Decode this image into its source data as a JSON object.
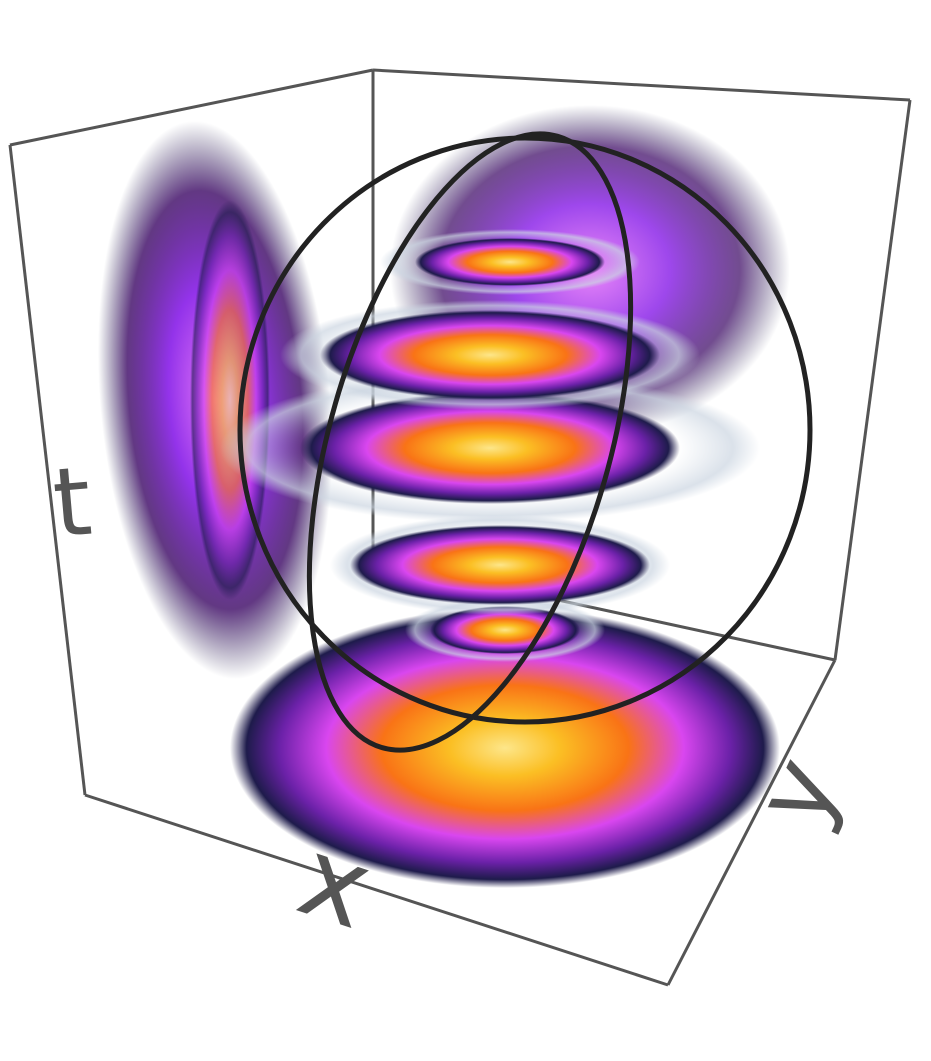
{
  "axes": {
    "x": "x",
    "y": "y",
    "t": "t"
  }
}
